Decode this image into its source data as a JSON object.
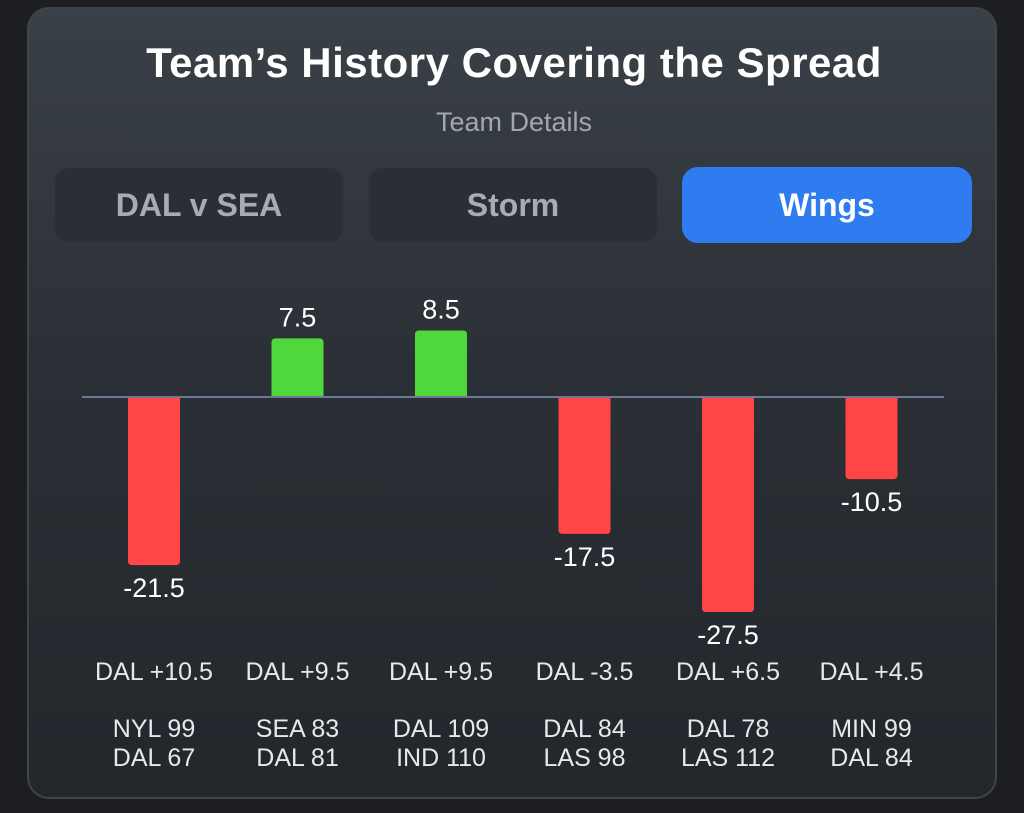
{
  "header": {
    "title": "Team’s History Covering the Spread",
    "subtitle": "Team Details"
  },
  "tabs": [
    {
      "label": "DAL v SEA",
      "active": false
    },
    {
      "label": "Storm",
      "active": false
    },
    {
      "label": "Wings",
      "active": true
    }
  ],
  "colors": {
    "positive": "#4fd83c",
    "negative": "#ff4545",
    "baseline": "#6a7a98",
    "accent": "#2f7cf0"
  },
  "chart_data": {
    "type": "bar",
    "categories": [
      "DAL +10.5",
      "DAL +9.5",
      "DAL +9.5",
      "DAL -3.5",
      "DAL +6.5",
      "DAL +4.5"
    ],
    "values": [
      -21.5,
      7.5,
      8.5,
      -17.5,
      -27.5,
      -10.5
    ],
    "value_labels": [
      "-21.5",
      "7.5",
      "8.5",
      "-17.5",
      "-27.5",
      "-10.5"
    ],
    "scores": [
      [
        "NYL 99",
        "DAL 67"
      ],
      [
        "SEA 83",
        "DAL 81"
      ],
      [
        "DAL 109",
        "IND 110"
      ],
      [
        "DAL 84",
        "LAS 98"
      ],
      [
        "DAL 78",
        "LAS 112"
      ],
      [
        "MIN 99",
        "DAL 84"
      ]
    ],
    "ylim": [
      -27.5,
      8.5
    ],
    "grid": false,
    "legend": "none"
  }
}
